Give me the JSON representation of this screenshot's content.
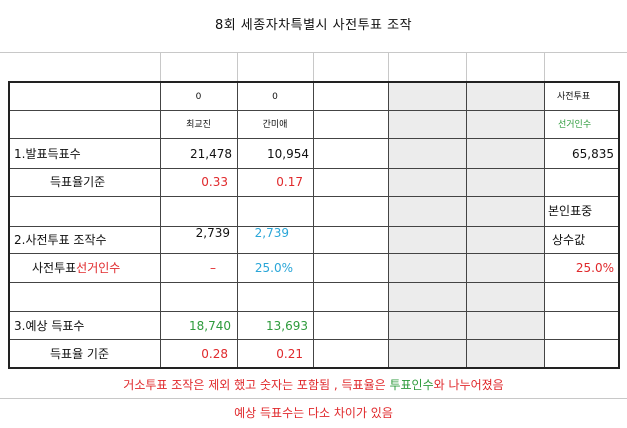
{
  "title": "8회 세종자차특별시 사전투표 조작",
  "header": {
    "cand1_num": "0",
    "cand2_num": "0",
    "cand1_name": "최교진",
    "cand2_name": "간미애",
    "right_top": "사전투표",
    "right_sub": "선거인수"
  },
  "rows": {
    "r1_label": "1.발표득표수",
    "r1_c1": "21,478",
    "r1_c2": "10,954",
    "r1_right": "65,835",
    "r2_label": "득표율기준",
    "r2_c1": "0.33",
    "r2_c2": "0.17",
    "r3_right": "본인표중",
    "r4_label": "2.사전투표 조작수",
    "r4_c1": "2,739",
    "r4_c2": "2,739",
    "r4_right": "상수값",
    "r5_label_a": "사전투표",
    "r5_label_b": "선거인수",
    "r5_c1": "–",
    "r5_c2": "25.0%",
    "r5_right": "25.0%",
    "r7_label": "3.예상 득표수",
    "r7_c1": "18,740",
    "r7_c2": "13,693",
    "r8_label": "득표율 기준",
    "r8_c1": "0.28",
    "r8_c2": "0.21"
  },
  "notes": {
    "line1_a": "거소투표 조작은  제외 했고 숫자는 포함됨 ,  득표율은 ",
    "line1_b": "투표인수",
    "line1_c": "와 나누어졌음",
    "line2": "예상 득표수는 다소 차이가 있음"
  },
  "colors": {
    "red": "#e0292c",
    "blue": "#2aa6d8",
    "green": "#2e9b3c",
    "grid": "#c8c8c8",
    "border": "#222222",
    "shade": "#ececec"
  }
}
